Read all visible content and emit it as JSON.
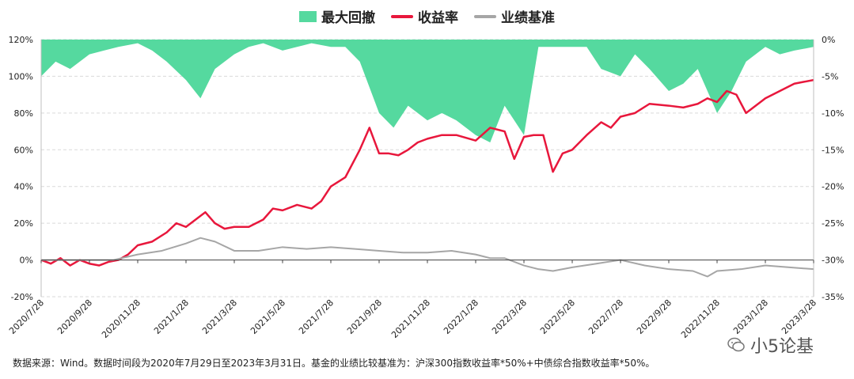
{
  "legend": {
    "drawdown": "最大回撤",
    "return": "收益率",
    "benchmark": "业绩基准"
  },
  "colors": {
    "drawdown": "#55d99f",
    "return": "#e8173c",
    "benchmark": "#a6a6a6"
  },
  "footnote": "数据来源：Wind。数据时间段为2020年7月29日至2023年3月31日。基金的业绩比较基准为：沪深300指数收益率*50%+中债综合指数收益率*50%。",
  "watermark": "小5论基",
  "chart_data": {
    "type": "line",
    "title": "",
    "x_tick_labels": [
      "2020/7/28",
      "2020/9/28",
      "2020/11/28",
      "2021/1/28",
      "2021/3/28",
      "2021/5/28",
      "2021/7/28",
      "2021/9/28",
      "2021/11/28",
      "2022/1/28",
      "2022/3/28",
      "2022/5/28",
      "2022/7/28",
      "2022/9/28",
      "2022/11/28",
      "2023/1/28",
      "2023/3/28"
    ],
    "y_left": {
      "ticks": [
        "-20%",
        "0%",
        "20%",
        "40%",
        "60%",
        "80%",
        "100%",
        "120%"
      ],
      "range": [
        -20,
        120
      ]
    },
    "y_right": {
      "ticks": [
        "-35%",
        "-30%",
        "-25%",
        "-20%",
        "-15%",
        "-10%",
        "-5%",
        "0%"
      ],
      "range": [
        -35,
        0
      ]
    },
    "grid": true,
    "legend_position": "top-center",
    "series": [
      {
        "name": "最大回撤",
        "axis": "right",
        "kind": "area",
        "x": [
          0,
          0.3,
          0.6,
          1,
          1.3,
          1.6,
          2,
          2.3,
          2.6,
          3,
          3.3,
          3.6,
          4,
          4.3,
          4.6,
          5,
          5.3,
          5.6,
          6,
          6.3,
          6.6,
          7,
          7.3,
          7.6,
          8,
          8.3,
          8.6,
          9,
          9.3,
          9.6,
          10,
          10.3,
          10.6,
          11,
          11.3,
          11.6,
          12,
          12.3,
          12.6,
          13,
          13.3,
          13.6,
          14,
          14.3,
          14.6,
          15,
          15.3,
          15.6,
          16
        ],
        "values": [
          -5,
          -3,
          -4,
          -2,
          -1.5,
          -1,
          -0.5,
          -1.5,
          -3,
          -5.5,
          -8,
          -4,
          -2,
          -1,
          -0.5,
          -1.5,
          -1,
          -0.5,
          -1,
          -1,
          -3,
          -10,
          -12,
          -9,
          -11,
          -10,
          -11,
          -13,
          -14,
          -9,
          -13,
          -1,
          -1,
          -1,
          -1,
          -4,
          -5,
          -2,
          -4,
          -7,
          -6,
          -4,
          -10,
          -7,
          -3,
          -1,
          -2,
          -1.5,
          -1
        ]
      },
      {
        "name": "收益率",
        "axis": "left",
        "kind": "line",
        "x": [
          0,
          0.2,
          0.4,
          0.6,
          0.8,
          1,
          1.2,
          1.4,
          1.6,
          1.8,
          2,
          2.3,
          2.6,
          2.8,
          3,
          3.2,
          3.4,
          3.6,
          3.8,
          4,
          4.3,
          4.6,
          4.8,
          5,
          5.3,
          5.6,
          5.8,
          6,
          6.3,
          6.6,
          6.8,
          7,
          7.2,
          7.4,
          7.6,
          7.8,
          8,
          8.3,
          8.6,
          9,
          9.3,
          9.6,
          9.8,
          10,
          10.2,
          10.4,
          10.6,
          10.8,
          11,
          11.3,
          11.6,
          11.8,
          12,
          12.3,
          12.6,
          13,
          13.3,
          13.6,
          13.8,
          14,
          14.2,
          14.4,
          14.6,
          15,
          15.3,
          15.6,
          15.8,
          16
        ],
        "values": [
          0,
          -2,
          1,
          -3,
          0,
          -2,
          -3,
          -1,
          0,
          3,
          8,
          10,
          15,
          20,
          18,
          22,
          26,
          20,
          17,
          18,
          18,
          22,
          28,
          27,
          30,
          28,
          32,
          40,
          45,
          60,
          72,
          58,
          58,
          57,
          60,
          64,
          66,
          68,
          68,
          65,
          72,
          70,
          55,
          67,
          68,
          68,
          48,
          58,
          60,
          68,
          75,
          72,
          78,
          80,
          85,
          84,
          83,
          85,
          88,
          86,
          92,
          90,
          80,
          88,
          92,
          96,
          97,
          98
        ]
      },
      {
        "name": "业绩基准",
        "axis": "left",
        "kind": "line",
        "x": [
          0,
          0.5,
          1,
          1.5,
          2,
          2.5,
          3,
          3.3,
          3.6,
          4,
          4.5,
          5,
          5.5,
          6,
          6.5,
          7,
          7.5,
          8,
          8.5,
          9,
          9.3,
          9.6,
          10,
          10.3,
          10.6,
          11,
          11.5,
          12,
          12.5,
          13,
          13.5,
          13.8,
          14,
          14.5,
          15,
          15.5,
          16
        ],
        "values": [
          0,
          0,
          0,
          0,
          3,
          5,
          9,
          12,
          10,
          5,
          5,
          7,
          6,
          7,
          6,
          5,
          4,
          4,
          5,
          3,
          1,
          1,
          -3,
          -5,
          -6,
          -4,
          -2,
          0,
          -3,
          -5,
          -6,
          -9,
          -6,
          -5,
          -3,
          -4,
          -5
        ]
      }
    ]
  }
}
